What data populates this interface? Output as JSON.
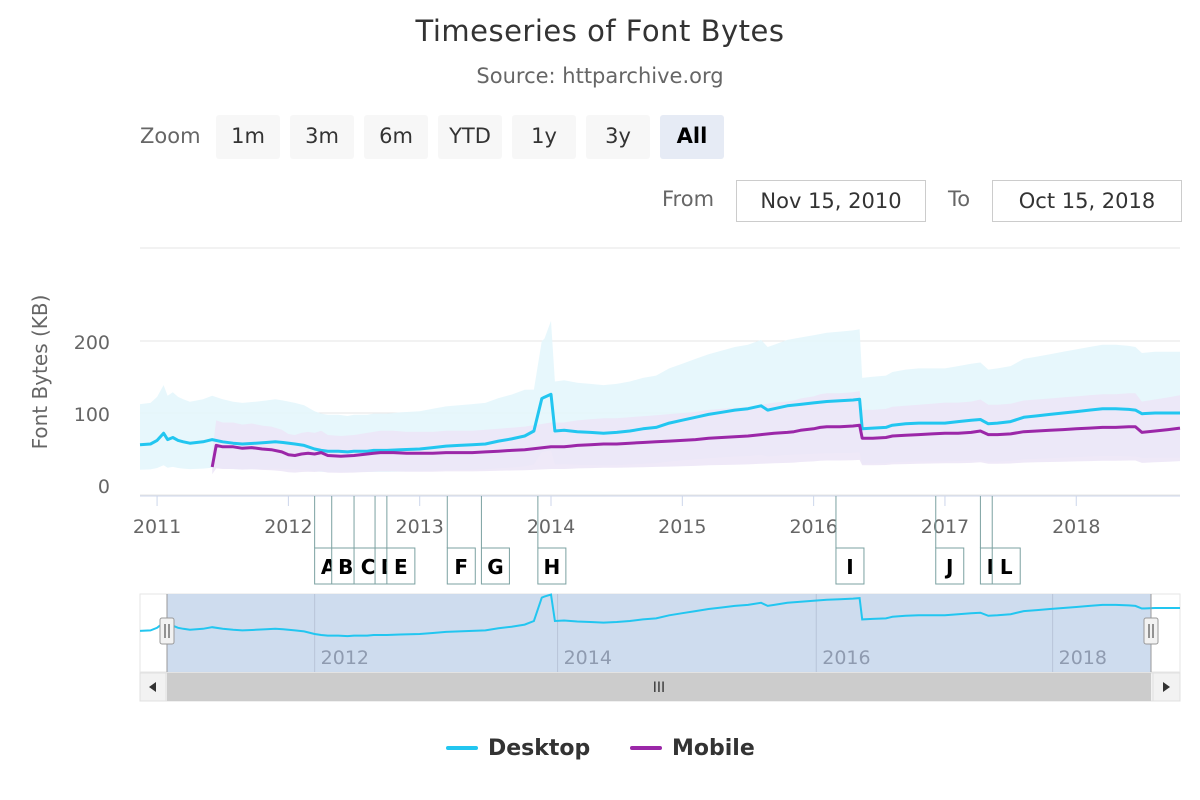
{
  "title": "Timeseries of Font Bytes",
  "subtitle": "Source: httparchive.org",
  "zoom": {
    "label": "Zoom",
    "buttons": [
      "1m",
      "3m",
      "6m",
      "YTD",
      "1y",
      "3y",
      "All"
    ],
    "active": "All"
  },
  "range": {
    "from_label": "From",
    "from_value": "Nov 15, 2010",
    "to_label": "To",
    "to_value": "Oct 15, 2018"
  },
  "navigator": {
    "scrollbar_grip": "III",
    "left_arrow": "◀",
    "right_arrow": "▶",
    "handle_glyph": "||"
  },
  "colors": {
    "desktop": "#22c6f0",
    "mobile": "#9b27a8",
    "desktop_band": "#e3f6fc",
    "mobile_band": "#ece5f7",
    "navigator_mask": "#c9d8ec"
  },
  "chart_data": {
    "type": "line",
    "title": "Timeseries of Font Bytes",
    "subtitle": "Source: httparchive.org",
    "ylabel": "Font Bytes (KB)",
    "xlabel": "",
    "ylim": [
      0,
      240
    ],
    "yticks": [
      0,
      100,
      200
    ],
    "xlim": [
      2010.87,
      2018.79
    ],
    "xticks": [
      "2011",
      "2012",
      "2013",
      "2014",
      "2015",
      "2016",
      "2017",
      "2018"
    ],
    "legend_position": "bottom",
    "grid": true,
    "series": [
      {
        "name": "Desktop",
        "x": [
          2010.87,
          2010.95,
          2011.0,
          2011.05,
          2011.08,
          2011.12,
          2011.16,
          2011.2,
          2011.25,
          2011.3,
          2011.35,
          2011.42,
          2011.5,
          2011.58,
          2011.65,
          2011.75,
          2011.83,
          2011.9,
          2011.96,
          2012.05,
          2012.12,
          2012.2,
          2012.25,
          2012.3,
          2012.38,
          2012.45,
          2012.5,
          2012.6,
          2012.65,
          2012.75,
          2012.85,
          2013.0,
          2013.1,
          2013.2,
          2013.3,
          2013.4,
          2013.5,
          2013.6,
          2013.7,
          2013.8,
          2013.87,
          2013.93,
          2013.95,
          2014.0,
          2014.03,
          2014.1,
          2014.2,
          2014.3,
          2014.4,
          2014.5,
          2014.6,
          2014.7,
          2014.8,
          2014.9,
          2015.0,
          2015.1,
          2015.2,
          2015.3,
          2015.4,
          2015.5,
          2015.6,
          2015.65,
          2015.7,
          2015.8,
          2015.9,
          2016.0,
          2016.1,
          2016.2,
          2016.3,
          2016.35,
          2016.37,
          2016.45,
          2016.55,
          2016.6,
          2016.7,
          2016.8,
          2016.9,
          2017.0,
          2017.1,
          2017.2,
          2017.27,
          2017.33,
          2017.4,
          2017.5,
          2017.6,
          2017.7,
          2017.8,
          2017.9,
          2018.0,
          2018.1,
          2018.2,
          2018.3,
          2018.4,
          2018.45,
          2018.5,
          2018.6,
          2018.7,
          2018.79
        ],
        "values": [
          56,
          57,
          62,
          72,
          63,
          66,
          62,
          60,
          58,
          59,
          60,
          63,
          60,
          58,
          57,
          58,
          59,
          60,
          59,
          57,
          55,
          50,
          48,
          47,
          47,
          46,
          47,
          47,
          48,
          48,
          49,
          50,
          52,
          54,
          55,
          56,
          57,
          61,
          64,
          68,
          75,
          120,
          122,
          126,
          75,
          76,
          74,
          73,
          72,
          73,
          75,
          78,
          80,
          86,
          90,
          94,
          98,
          101,
          104,
          106,
          110,
          104,
          106,
          110,
          112,
          114,
          116,
          117,
          118,
          119,
          78,
          79,
          80,
          83,
          85,
          86,
          86,
          86,
          88,
          90,
          91,
          85,
          86,
          88,
          94,
          96,
          98,
          100,
          102,
          104,
          106,
          106,
          105,
          104,
          99,
          100,
          100,
          100
        ]
      },
      {
        "name": "Mobile",
        "x": [
          2011.42,
          2011.45,
          2011.5,
          2011.58,
          2011.65,
          2011.72,
          2011.8,
          2011.87,
          2011.95,
          2012.0,
          2012.05,
          2012.1,
          2012.15,
          2012.2,
          2012.25,
          2012.3,
          2012.4,
          2012.5,
          2012.55,
          2012.6,
          2012.65,
          2012.7,
          2012.8,
          2012.9,
          2013.0,
          2013.1,
          2013.2,
          2013.3,
          2013.4,
          2013.5,
          2013.6,
          2013.7,
          2013.8,
          2013.9,
          2014.0,
          2014.1,
          2014.15,
          2014.2,
          2014.3,
          2014.4,
          2014.5,
          2014.6,
          2014.7,
          2014.8,
          2014.9,
          2015.0,
          2015.1,
          2015.2,
          2015.3,
          2015.4,
          2015.5,
          2015.6,
          2015.7,
          2015.8,
          2015.85,
          2015.9,
          2016.0,
          2016.05,
          2016.1,
          2016.2,
          2016.3,
          2016.35,
          2016.37,
          2016.45,
          2016.55,
          2016.6,
          2016.7,
          2016.8,
          2016.9,
          2017.0,
          2017.1,
          2017.2,
          2017.27,
          2017.33,
          2017.4,
          2017.5,
          2017.6,
          2017.7,
          2017.8,
          2017.9,
          2018.0,
          2018.1,
          2018.2,
          2018.3,
          2018.4,
          2018.45,
          2018.5,
          2018.6,
          2018.7,
          2018.79
        ],
        "values": [
          25,
          55,
          53,
          53,
          51,
          52,
          50,
          49,
          46,
          42,
          41,
          43,
          44,
          43,
          45,
          41,
          40,
          41,
          42,
          43,
          44,
          45,
          45,
          44,
          44,
          44,
          45,
          45,
          45,
          46,
          47,
          48,
          49,
          51,
          53,
          53,
          54,
          55,
          56,
          57,
          57,
          58,
          59,
          60,
          61,
          62,
          63,
          65,
          66,
          67,
          68,
          70,
          72,
          73,
          74,
          76,
          78,
          80,
          81,
          81,
          82,
          83,
          65,
          65,
          66,
          68,
          69,
          70,
          71,
          72,
          72,
          73,
          75,
          70,
          70,
          71,
          74,
          75,
          76,
          77,
          78,
          79,
          80,
          80,
          81,
          81,
          73,
          75,
          77,
          79
        ]
      }
    ],
    "flags": [
      {
        "x": 2012.2,
        "label": "A"
      },
      {
        "x": 2012.33,
        "label": "B"
      },
      {
        "x": 2012.5,
        "label": "C"
      },
      {
        "x": 2012.66,
        "label": "D"
      },
      {
        "x": 2012.75,
        "label": "E"
      },
      {
        "x": 2013.21,
        "label": "F"
      },
      {
        "x": 2013.47,
        "label": "G"
      },
      {
        "x": 2013.9,
        "label": "H"
      },
      {
        "x": 2016.17,
        "label": "I"
      },
      {
        "x": 2016.93,
        "label": "J"
      },
      {
        "x": 2017.27,
        "label": "K"
      },
      {
        "x": 2017.36,
        "label": "L"
      }
    ],
    "navigator_xticks": [
      "2012",
      "2014",
      "2016",
      "2018"
    ]
  }
}
